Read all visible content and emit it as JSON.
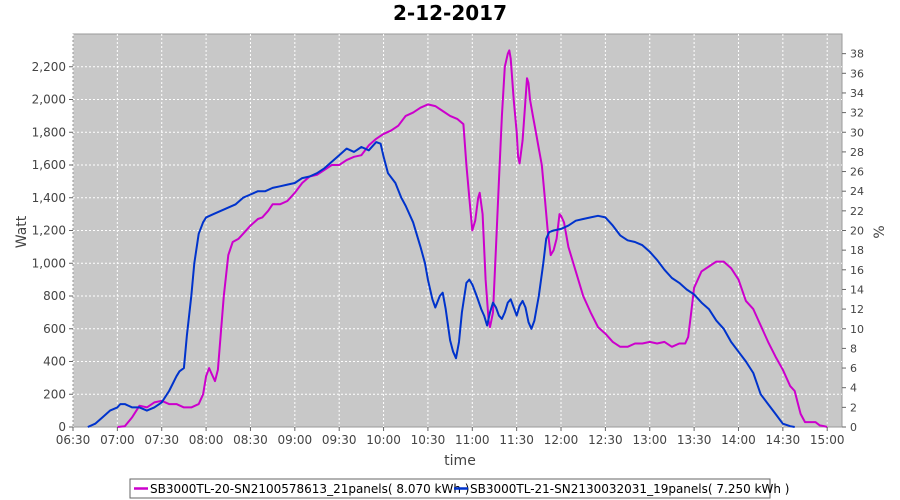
{
  "chart_data": {
    "type": "line",
    "title": "2-12-2017",
    "xlabel": "time",
    "ylabel": "Watt",
    "y2label": "%",
    "xlim": [
      "06:30",
      "15:10"
    ],
    "x_ticks": [
      "06:30",
      "07:00",
      "07:30",
      "08:00",
      "08:30",
      "09:00",
      "09:30",
      "10:00",
      "10:30",
      "11:00",
      "11:30",
      "12:00",
      "12:30",
      "13:00",
      "13:30",
      "14:00",
      "14:30",
      "15:00"
    ],
    "ylim": [
      0,
      2400
    ],
    "y_ticks": [
      0,
      200,
      400,
      600,
      800,
      1000,
      1200,
      1400,
      1600,
      1800,
      2000,
      2200
    ],
    "y_tick_labels": [
      "0",
      "200",
      "400",
      "600",
      "800",
      "1,000",
      "1,200",
      "1,400",
      "1,600",
      "1,800",
      "2,000",
      "2,200"
    ],
    "y2lim": [
      0,
      40
    ],
    "y2_ticks": [
      0,
      2,
      4,
      6,
      8,
      10,
      12,
      14,
      16,
      18,
      20,
      22,
      24,
      26,
      28,
      30,
      32,
      34,
      36,
      38
    ],
    "grid": true,
    "legend_placement": "bottom",
    "background": "#c8c8c8",
    "series": [
      {
        "name": "SB3000TL-20-SN2100578613_21panels( 8.070 kWh )",
        "color": "#cc00cc",
        "points": [
          [
            "07:00",
            0
          ],
          [
            "07:05",
            5
          ],
          [
            "07:10",
            60
          ],
          [
            "07:15",
            130
          ],
          [
            "07:20",
            120
          ],
          [
            "07:25",
            150
          ],
          [
            "07:30",
            160
          ],
          [
            "07:35",
            140
          ],
          [
            "07:40",
            140
          ],
          [
            "07:45",
            120
          ],
          [
            "07:50",
            120
          ],
          [
            "07:55",
            140
          ],
          [
            "07:58",
            200
          ],
          [
            "08:00",
            310
          ],
          [
            "08:02",
            360
          ],
          [
            "08:04",
            320
          ],
          [
            "08:06",
            280
          ],
          [
            "08:08",
            350
          ],
          [
            "08:12",
            800
          ],
          [
            "08:15",
            1050
          ],
          [
            "08:18",
            1130
          ],
          [
            "08:22",
            1150
          ],
          [
            "08:25",
            1180
          ],
          [
            "08:30",
            1230
          ],
          [
            "08:35",
            1270
          ],
          [
            "08:38",
            1280
          ],
          [
            "08:42",
            1320
          ],
          [
            "08:45",
            1360
          ],
          [
            "08:50",
            1360
          ],
          [
            "08:55",
            1380
          ],
          [
            "09:00",
            1430
          ],
          [
            "09:05",
            1490
          ],
          [
            "09:10",
            1530
          ],
          [
            "09:15",
            1540
          ],
          [
            "09:20",
            1570
          ],
          [
            "09:25",
            1600
          ],
          [
            "09:30",
            1600
          ],
          [
            "09:35",
            1630
          ],
          [
            "09:40",
            1650
          ],
          [
            "09:45",
            1660
          ],
          [
            "09:50",
            1720
          ],
          [
            "09:55",
            1760
          ],
          [
            "10:00",
            1790
          ],
          [
            "10:05",
            1810
          ],
          [
            "10:10",
            1840
          ],
          [
            "10:15",
            1900
          ],
          [
            "10:20",
            1920
          ],
          [
            "10:25",
            1950
          ],
          [
            "10:30",
            1970
          ],
          [
            "10:35",
            1960
          ],
          [
            "10:40",
            1930
          ],
          [
            "10:45",
            1900
          ],
          [
            "10:50",
            1880
          ],
          [
            "10:54",
            1850
          ],
          [
            "10:56",
            1600
          ],
          [
            "10:58",
            1400
          ],
          [
            "11:00",
            1200
          ],
          [
            "11:02",
            1260
          ],
          [
            "11:04",
            1400
          ],
          [
            "11:05",
            1430
          ],
          [
            "11:07",
            1300
          ],
          [
            "11:09",
            900
          ],
          [
            "11:11",
            650
          ],
          [
            "11:12",
            610
          ],
          [
            "11:14",
            700
          ],
          [
            "11:16",
            1100
          ],
          [
            "11:18",
            1500
          ],
          [
            "11:20",
            1900
          ],
          [
            "11:22",
            2200
          ],
          [
            "11:24",
            2280
          ],
          [
            "11:25",
            2300
          ],
          [
            "11:26",
            2250
          ],
          [
            "11:28",
            2000
          ],
          [
            "11:30",
            1800
          ],
          [
            "11:31",
            1650
          ],
          [
            "11:32",
            1610
          ],
          [
            "11:34",
            1750
          ],
          [
            "11:36",
            2000
          ],
          [
            "11:37",
            2130
          ],
          [
            "11:38",
            2100
          ],
          [
            "11:39",
            2000
          ],
          [
            "11:41",
            1900
          ],
          [
            "11:43",
            1800
          ],
          [
            "11:45",
            1700
          ],
          [
            "11:47",
            1600
          ],
          [
            "11:49",
            1400
          ],
          [
            "11:51",
            1200
          ],
          [
            "11:53",
            1050
          ],
          [
            "11:55",
            1080
          ],
          [
            "11:57",
            1150
          ],
          [
            "11:59",
            1300
          ],
          [
            "12:00",
            1290
          ],
          [
            "12:02",
            1250
          ],
          [
            "12:05",
            1100
          ],
          [
            "12:10",
            950
          ],
          [
            "12:15",
            800
          ],
          [
            "12:20",
            700
          ],
          [
            "12:25",
            610
          ],
          [
            "12:30",
            570
          ],
          [
            "12:35",
            520
          ],
          [
            "12:40",
            490
          ],
          [
            "12:45",
            490
          ],
          [
            "12:50",
            510
          ],
          [
            "12:55",
            510
          ],
          [
            "13:00",
            520
          ],
          [
            "13:05",
            510
          ],
          [
            "13:10",
            520
          ],
          [
            "13:15",
            490
          ],
          [
            "13:20",
            510
          ],
          [
            "13:24",
            510
          ],
          [
            "13:26",
            550
          ],
          [
            "13:28",
            700
          ],
          [
            "13:30",
            850
          ],
          [
            "13:35",
            950
          ],
          [
            "13:40",
            980
          ],
          [
            "13:45",
            1010
          ],
          [
            "13:50",
            1010
          ],
          [
            "13:55",
            970
          ],
          [
            "14:00",
            900
          ],
          [
            "14:05",
            770
          ],
          [
            "14:10",
            720
          ],
          [
            "14:15",
            620
          ],
          [
            "14:20",
            520
          ],
          [
            "14:25",
            430
          ],
          [
            "14:30",
            350
          ],
          [
            "14:35",
            250
          ],
          [
            "14:38",
            220
          ],
          [
            "14:40",
            150
          ],
          [
            "14:42",
            80
          ],
          [
            "14:45",
            30
          ],
          [
            "14:50",
            30
          ],
          [
            "14:52",
            30
          ],
          [
            "14:55",
            10
          ],
          [
            "14:58",
            5
          ],
          [
            "15:00",
            0
          ]
        ]
      },
      {
        "name": "SB3000TL-21-SN2130032031_19panels( 7.250 kWh )",
        "color": "#0033cc",
        "points": [
          [
            "06:40",
            0
          ],
          [
            "06:45",
            20
          ],
          [
            "06:50",
            60
          ],
          [
            "06:55",
            100
          ],
          [
            "07:00",
            120
          ],
          [
            "07:02",
            140
          ],
          [
            "07:05",
            140
          ],
          [
            "07:10",
            120
          ],
          [
            "07:15",
            120
          ],
          [
            "07:20",
            100
          ],
          [
            "07:25",
            120
          ],
          [
            "07:30",
            150
          ],
          [
            "07:35",
            220
          ],
          [
            "07:40",
            310
          ],
          [
            "07:42",
            340
          ],
          [
            "07:45",
            360
          ],
          [
            "07:47",
            560
          ],
          [
            "07:50",
            800
          ],
          [
            "07:52",
            1000
          ],
          [
            "07:55",
            1180
          ],
          [
            "07:58",
            1250
          ],
          [
            "08:00",
            1280
          ],
          [
            "08:05",
            1300
          ],
          [
            "08:10",
            1320
          ],
          [
            "08:15",
            1340
          ],
          [
            "08:20",
            1360
          ],
          [
            "08:25",
            1400
          ],
          [
            "08:30",
            1420
          ],
          [
            "08:35",
            1440
          ],
          [
            "08:40",
            1440
          ],
          [
            "08:45",
            1460
          ],
          [
            "08:50",
            1470
          ],
          [
            "08:55",
            1480
          ],
          [
            "09:00",
            1490
          ],
          [
            "09:05",
            1520
          ],
          [
            "09:10",
            1530
          ],
          [
            "09:15",
            1550
          ],
          [
            "09:20",
            1580
          ],
          [
            "09:25",
            1620
          ],
          [
            "09:30",
            1660
          ],
          [
            "09:35",
            1700
          ],
          [
            "09:40",
            1680
          ],
          [
            "09:45",
            1710
          ],
          [
            "09:50",
            1690
          ],
          [
            "09:55",
            1740
          ],
          [
            "09:58",
            1730
          ],
          [
            "10:00",
            1650
          ],
          [
            "10:03",
            1550
          ],
          [
            "10:08",
            1490
          ],
          [
            "10:12",
            1400
          ],
          [
            "10:15",
            1350
          ],
          [
            "10:20",
            1250
          ],
          [
            "10:25",
            1100
          ],
          [
            "10:28",
            1000
          ],
          [
            "10:30",
            900
          ],
          [
            "10:33",
            780
          ],
          [
            "10:35",
            730
          ],
          [
            "10:38",
            800
          ],
          [
            "10:40",
            820
          ],
          [
            "10:42",
            720
          ],
          [
            "10:45",
            530
          ],
          [
            "10:47",
            460
          ],
          [
            "10:49",
            420
          ],
          [
            "10:51",
            520
          ],
          [
            "10:53",
            700
          ],
          [
            "10:56",
            880
          ],
          [
            "10:58",
            900
          ],
          [
            "11:00",
            870
          ],
          [
            "11:03",
            800
          ],
          [
            "11:06",
            720
          ],
          [
            "11:08",
            680
          ],
          [
            "11:10",
            620
          ],
          [
            "11:12",
            700
          ],
          [
            "11:14",
            760
          ],
          [
            "11:16",
            730
          ],
          [
            "11:18",
            680
          ],
          [
            "11:20",
            660
          ],
          [
            "11:22",
            700
          ],
          [
            "11:24",
            760
          ],
          [
            "11:26",
            780
          ],
          [
            "11:28",
            730
          ],
          [
            "11:30",
            680
          ],
          [
            "11:32",
            740
          ],
          [
            "11:34",
            770
          ],
          [
            "11:36",
            730
          ],
          [
            "11:38",
            640
          ],
          [
            "11:40",
            600
          ],
          [
            "11:42",
            650
          ],
          [
            "11:45",
            800
          ],
          [
            "11:48",
            1000
          ],
          [
            "11:50",
            1150
          ],
          [
            "11:52",
            1190
          ],
          [
            "11:55",
            1200
          ],
          [
            "12:00",
            1210
          ],
          [
            "12:05",
            1230
          ],
          [
            "12:10",
            1260
          ],
          [
            "12:15",
            1270
          ],
          [
            "12:20",
            1280
          ],
          [
            "12:25",
            1290
          ],
          [
            "12:30",
            1280
          ],
          [
            "12:35",
            1230
          ],
          [
            "12:40",
            1170
          ],
          [
            "12:45",
            1140
          ],
          [
            "12:50",
            1130
          ],
          [
            "12:55",
            1110
          ],
          [
            "13:00",
            1070
          ],
          [
            "13:05",
            1020
          ],
          [
            "13:10",
            960
          ],
          [
            "13:15",
            910
          ],
          [
            "13:20",
            880
          ],
          [
            "13:25",
            840
          ],
          [
            "13:30",
            810
          ],
          [
            "13:35",
            760
          ],
          [
            "13:40",
            720
          ],
          [
            "13:45",
            650
          ],
          [
            "13:50",
            600
          ],
          [
            "13:55",
            520
          ],
          [
            "14:00",
            460
          ],
          [
            "14:05",
            400
          ],
          [
            "14:10",
            330
          ],
          [
            "14:15",
            200
          ],
          [
            "14:20",
            140
          ],
          [
            "14:25",
            80
          ],
          [
            "14:30",
            20
          ],
          [
            "14:35",
            5
          ],
          [
            "14:38",
            0
          ]
        ]
      }
    ]
  }
}
